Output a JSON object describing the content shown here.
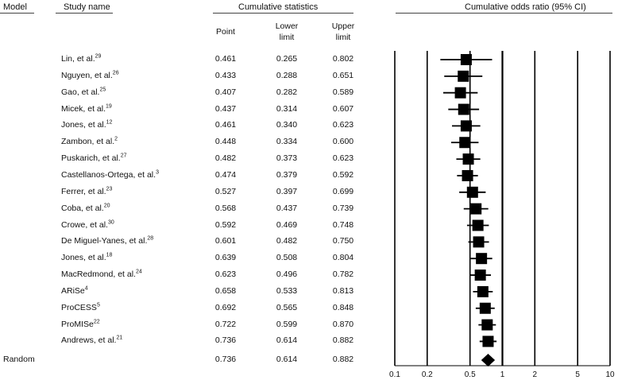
{
  "headers": {
    "model": "Model",
    "study_name": "Study name",
    "cumulative_statistics": "Cumulative statistics",
    "plot_title": "Cumulative odds ratio (95% CI)",
    "point": "Point",
    "lower": "Lower",
    "lower2": "limit",
    "upper": "Upper",
    "upper2": "limit"
  },
  "model_label": "Random",
  "chart_data": {
    "type": "forest",
    "title": "Cumulative odds ratio (95% CI)",
    "x_scale": "log",
    "xlim": [
      0.1,
      10
    ],
    "x_ticks": [
      0.1,
      0.2,
      0.5,
      1,
      2,
      5,
      10
    ],
    "x_tick_labels": [
      "0.1",
      "0.2",
      "0.5",
      "1",
      "2",
      "5",
      "10"
    ],
    "rows": [
      {
        "study": "Lin, et al.",
        "ref": "29",
        "point": 0.461,
        "lower": 0.265,
        "upper": 0.802
      },
      {
        "study": "Nguyen, et al.",
        "ref": "26",
        "point": 0.433,
        "lower": 0.288,
        "upper": 0.651
      },
      {
        "study": "Gao, et al.",
        "ref": "25",
        "point": 0.407,
        "lower": 0.282,
        "upper": 0.589
      },
      {
        "study": "Micek, et al.",
        "ref": "19",
        "point": 0.437,
        "lower": 0.314,
        "upper": 0.607
      },
      {
        "study": "Jones, et al.",
        "ref": "12",
        "point": 0.461,
        "lower": 0.34,
        "upper": 0.623
      },
      {
        "study": "Zambon, et al.",
        "ref": "2",
        "point": 0.448,
        "lower": 0.334,
        "upper": 0.6
      },
      {
        "study": "Puskarich, et al.",
        "ref": "27",
        "point": 0.482,
        "lower": 0.373,
        "upper": 0.623
      },
      {
        "study": "Castellanos-Ortega, et al.",
        "ref": "3",
        "point": 0.474,
        "lower": 0.379,
        "upper": 0.592
      },
      {
        "study": "Ferrer, et al.",
        "ref": "23",
        "point": 0.527,
        "lower": 0.397,
        "upper": 0.699
      },
      {
        "study": "Coba, et al.",
        "ref": "20",
        "point": 0.568,
        "lower": 0.437,
        "upper": 0.739
      },
      {
        "study": "Crowe, et al.",
        "ref": "30",
        "point": 0.592,
        "lower": 0.469,
        "upper": 0.748
      },
      {
        "study": "De Miguel-Yanes, et al.",
        "ref": "28",
        "point": 0.601,
        "lower": 0.482,
        "upper": 0.75
      },
      {
        "study": "Jones, et al.",
        "ref": "18",
        "point": 0.639,
        "lower": 0.508,
        "upper": 0.804
      },
      {
        "study": "MacRedmond, et al.",
        "ref": "24",
        "point": 0.623,
        "lower": 0.496,
        "upper": 0.782
      },
      {
        "study": "ARiSe",
        "ref": "4",
        "point": 0.658,
        "lower": 0.533,
        "upper": 0.813
      },
      {
        "study": "ProCESS",
        "ref": "5",
        "point": 0.692,
        "lower": 0.565,
        "upper": 0.848
      },
      {
        "study": "ProMISe",
        "ref": "22",
        "point": 0.722,
        "lower": 0.599,
        "upper": 0.87
      },
      {
        "study": "Andrews, et al.",
        "ref": "21",
        "point": 0.736,
        "lower": 0.614,
        "upper": 0.882
      }
    ],
    "summary": {
      "point": 0.736,
      "lower": 0.614,
      "upper": 0.882
    }
  }
}
